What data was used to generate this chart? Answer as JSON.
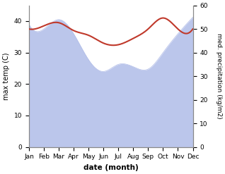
{
  "months": [
    "Jan",
    "Feb",
    "Mar",
    "Apr",
    "May",
    "Jun",
    "Jul",
    "Aug",
    "Sep",
    "Oct",
    "Nov",
    "Dec"
  ],
  "temp": [
    37.5,
    38.5,
    39.5,
    37.0,
    35.5,
    33.0,
    32.5,
    34.5,
    37.5,
    41.0,
    37.5,
    37.5
  ],
  "precip": [
    52,
    50,
    54,
    48,
    37,
    32,
    35,
    34,
    33,
    40,
    48,
    55
  ],
  "temp_color": "#c0392b",
  "precip_color": "#b0bce8",
  "ylim_left": [
    0,
    45
  ],
  "ylim_right": [
    0,
    60
  ],
  "xlabel": "date (month)",
  "ylabel_left": "max temp (C)",
  "ylabel_right": "med. precipitation (kg/m2)",
  "yticks_left": [
    0,
    10,
    20,
    30,
    40
  ],
  "yticks_right": [
    0,
    10,
    20,
    30,
    40,
    50,
    60
  ]
}
